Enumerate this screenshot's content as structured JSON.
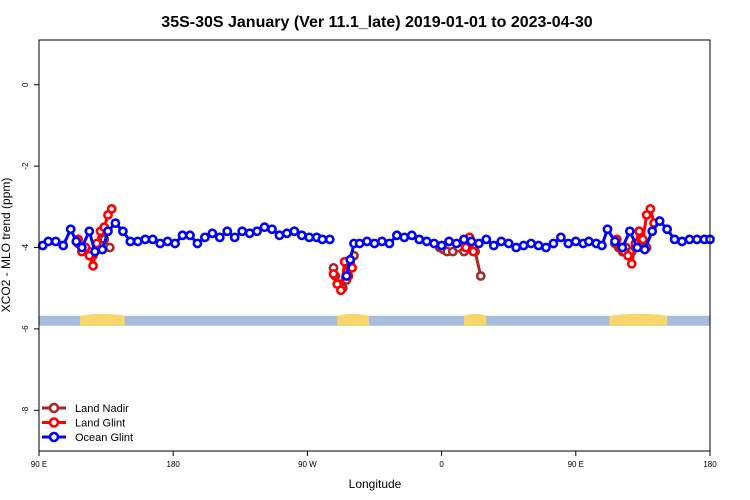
{
  "chart_data": {
    "type": "line",
    "title": "35S-30S January (Ver 11.1_late)   2019-01-01 to 2023-04-30",
    "xlabel": "Longitude",
    "ylabel": "XCO2 - MLO trend (ppm)",
    "xlim": [
      90,
      450
    ],
    "ylim": [
      -9,
      1.1
    ],
    "x_ticks": [
      {
        "value": 90,
        "label": "90 E"
      },
      {
        "value": 162,
        "label": "180"
      },
      {
        "value": 234,
        "label": "90 W"
      },
      {
        "value": 306,
        "label": "0"
      },
      {
        "value": 378,
        "label": "90 E"
      },
      {
        "value": 450,
        "label": "180"
      }
    ],
    "y_ticks": [
      0,
      -2,
      -4,
      -6,
      -8
    ],
    "grid": false,
    "legend": {
      "position": "bottom-left",
      "entries": [
        "Land Nadir",
        "Land Glint",
        "Ocean Glint"
      ]
    },
    "colors": {
      "Land Nadir": "#a52a2a",
      "Land Glint": "#ff0000",
      "Ocean Glint": "#0000ff",
      "ocean_band": "#a6bddb",
      "land_band": "#f9d66b"
    },
    "land_band_y": -5.8,
    "land_segments": [
      [
        112,
        136
      ],
      [
        250,
        267
      ],
      [
        318,
        330
      ],
      [
        396,
        427
      ]
    ],
    "series": [
      {
        "name": "Land Nadir",
        "segments": [
          {
            "x": [
              111,
              114,
              117,
              119,
              121,
              123,
              125,
              128
            ],
            "y": [
              -3.9,
              -4.0,
              -4.1,
              -4.2,
              -4.0,
              -3.9,
              -3.8,
              -4.0
            ]
          },
          {
            "x": [
              248,
              249,
              251,
              253,
              255,
              257,
              259
            ],
            "y": [
              -4.5,
              -4.7,
              -4.9,
              -5.0,
              -4.8,
              -4.4,
              -4.2
            ]
          },
          {
            "x": [
              305,
              307,
              309,
              312,
              315,
              318,
              321,
              324,
              327
            ],
            "y": [
              -4.0,
              -4.05,
              -4.1,
              -4.1,
              -4.0,
              -4.1,
              -3.9,
              -4.1,
              -4.7
            ]
          },
          {
            "x": [
              399,
              401,
              403,
              405,
              408,
              410,
              412,
              414,
              416
            ],
            "y": [
              -3.9,
              -4.0,
              -4.1,
              -4.0,
              -4.1,
              -4.0,
              -3.9,
              -4.0,
              -4.0
            ]
          }
        ]
      },
      {
        "name": "Land Glint",
        "segments": [
          {
            "x": [
              111,
              113,
              115,
              117,
              119,
              121,
              123,
              125,
              127,
              129
            ],
            "y": [
              -3.8,
              -4.1,
              -4.0,
              -4.2,
              -4.45,
              -3.9,
              -3.6,
              -3.5,
              -3.2,
              -3.05
            ]
          },
          {
            "x": [
              248,
              250,
              252,
              254,
              256,
              258
            ],
            "y": [
              -4.65,
              -4.9,
              -5.05,
              -4.35,
              -4.7,
              -4.5
            ]
          },
          {
            "x": [
              319,
              321,
              323
            ],
            "y": [
              -4.0,
              -3.75,
              -4.1
            ]
          },
          {
            "x": [
              400,
              402,
              404,
              406,
              408,
              410,
              412,
              414,
              416,
              418,
              420
            ],
            "y": [
              -3.8,
              -4.0,
              -4.1,
              -4.2,
              -4.4,
              -3.9,
              -3.6,
              -3.8,
              -3.2,
              -3.05,
              -3.4
            ]
          }
        ]
      },
      {
        "name": "Ocean Glint",
        "segments": [
          {
            "x": [
              92,
              95,
              99,
              103,
              107,
              110,
              113,
              117,
              120,
              124,
              127,
              131,
              135,
              139,
              143,
              147,
              151,
              155,
              159,
              163,
              167,
              171,
              175,
              179,
              183,
              187,
              191,
              195,
              199,
              203,
              207,
              211,
              215,
              219,
              223,
              227,
              231,
              235,
              239,
              242,
              246
            ],
            "y": [
              -3.95,
              -3.85,
              -3.85,
              -3.95,
              -3.55,
              -3.85,
              -4.0,
              -3.6,
              -4.1,
              -4.05,
              -3.6,
              -3.4,
              -3.6,
              -3.85,
              -3.85,
              -3.8,
              -3.8,
              -3.9,
              -3.85,
              -3.9,
              -3.7,
              -3.7,
              -3.9,
              -3.75,
              -3.65,
              -3.75,
              -3.6,
              -3.75,
              -3.6,
              -3.65,
              -3.6,
              -3.5,
              -3.55,
              -3.7,
              -3.65,
              -3.6,
              -3.7,
              -3.75,
              -3.75,
              -3.8,
              -3.8
            ]
          },
          {
            "x": [
              255,
              257,
              259,
              262,
              266,
              270,
              274,
              278,
              282,
              286,
              290,
              294,
              298,
              302,
              306,
              310,
              314,
              318,
              322,
              326,
              330,
              334,
              338,
              342,
              346,
              350,
              354,
              358,
              362,
              366,
              370,
              374,
              378,
              382,
              385,
              389,
              392,
              395,
              399,
              403,
              407,
              411,
              415,
              419,
              423,
              427,
              431,
              435,
              439,
              443,
              447,
              450
            ],
            "y": [
              -4.7,
              -4.3,
              -3.9,
              -3.9,
              -3.85,
              -3.9,
              -3.85,
              -3.9,
              -3.7,
              -3.75,
              -3.7,
              -3.8,
              -3.85,
              -3.9,
              -3.95,
              -3.85,
              -3.9,
              -3.8,
              -3.85,
              -3.9,
              -3.8,
              -3.95,
              -3.85,
              -3.9,
              -4.0,
              -3.95,
              -3.9,
              -3.95,
              -4.0,
              -3.9,
              -3.75,
              -3.9,
              -3.85,
              -3.9,
              -3.85,
              -3.9,
              -3.95,
              -3.55,
              -3.85,
              -4.0,
              -3.6,
              -4.0,
              -4.05,
              -3.6,
              -3.35,
              -3.55,
              -3.8,
              -3.85,
              -3.8,
              -3.8,
              -3.8,
              -3.8
            ]
          }
        ]
      }
    ]
  }
}
